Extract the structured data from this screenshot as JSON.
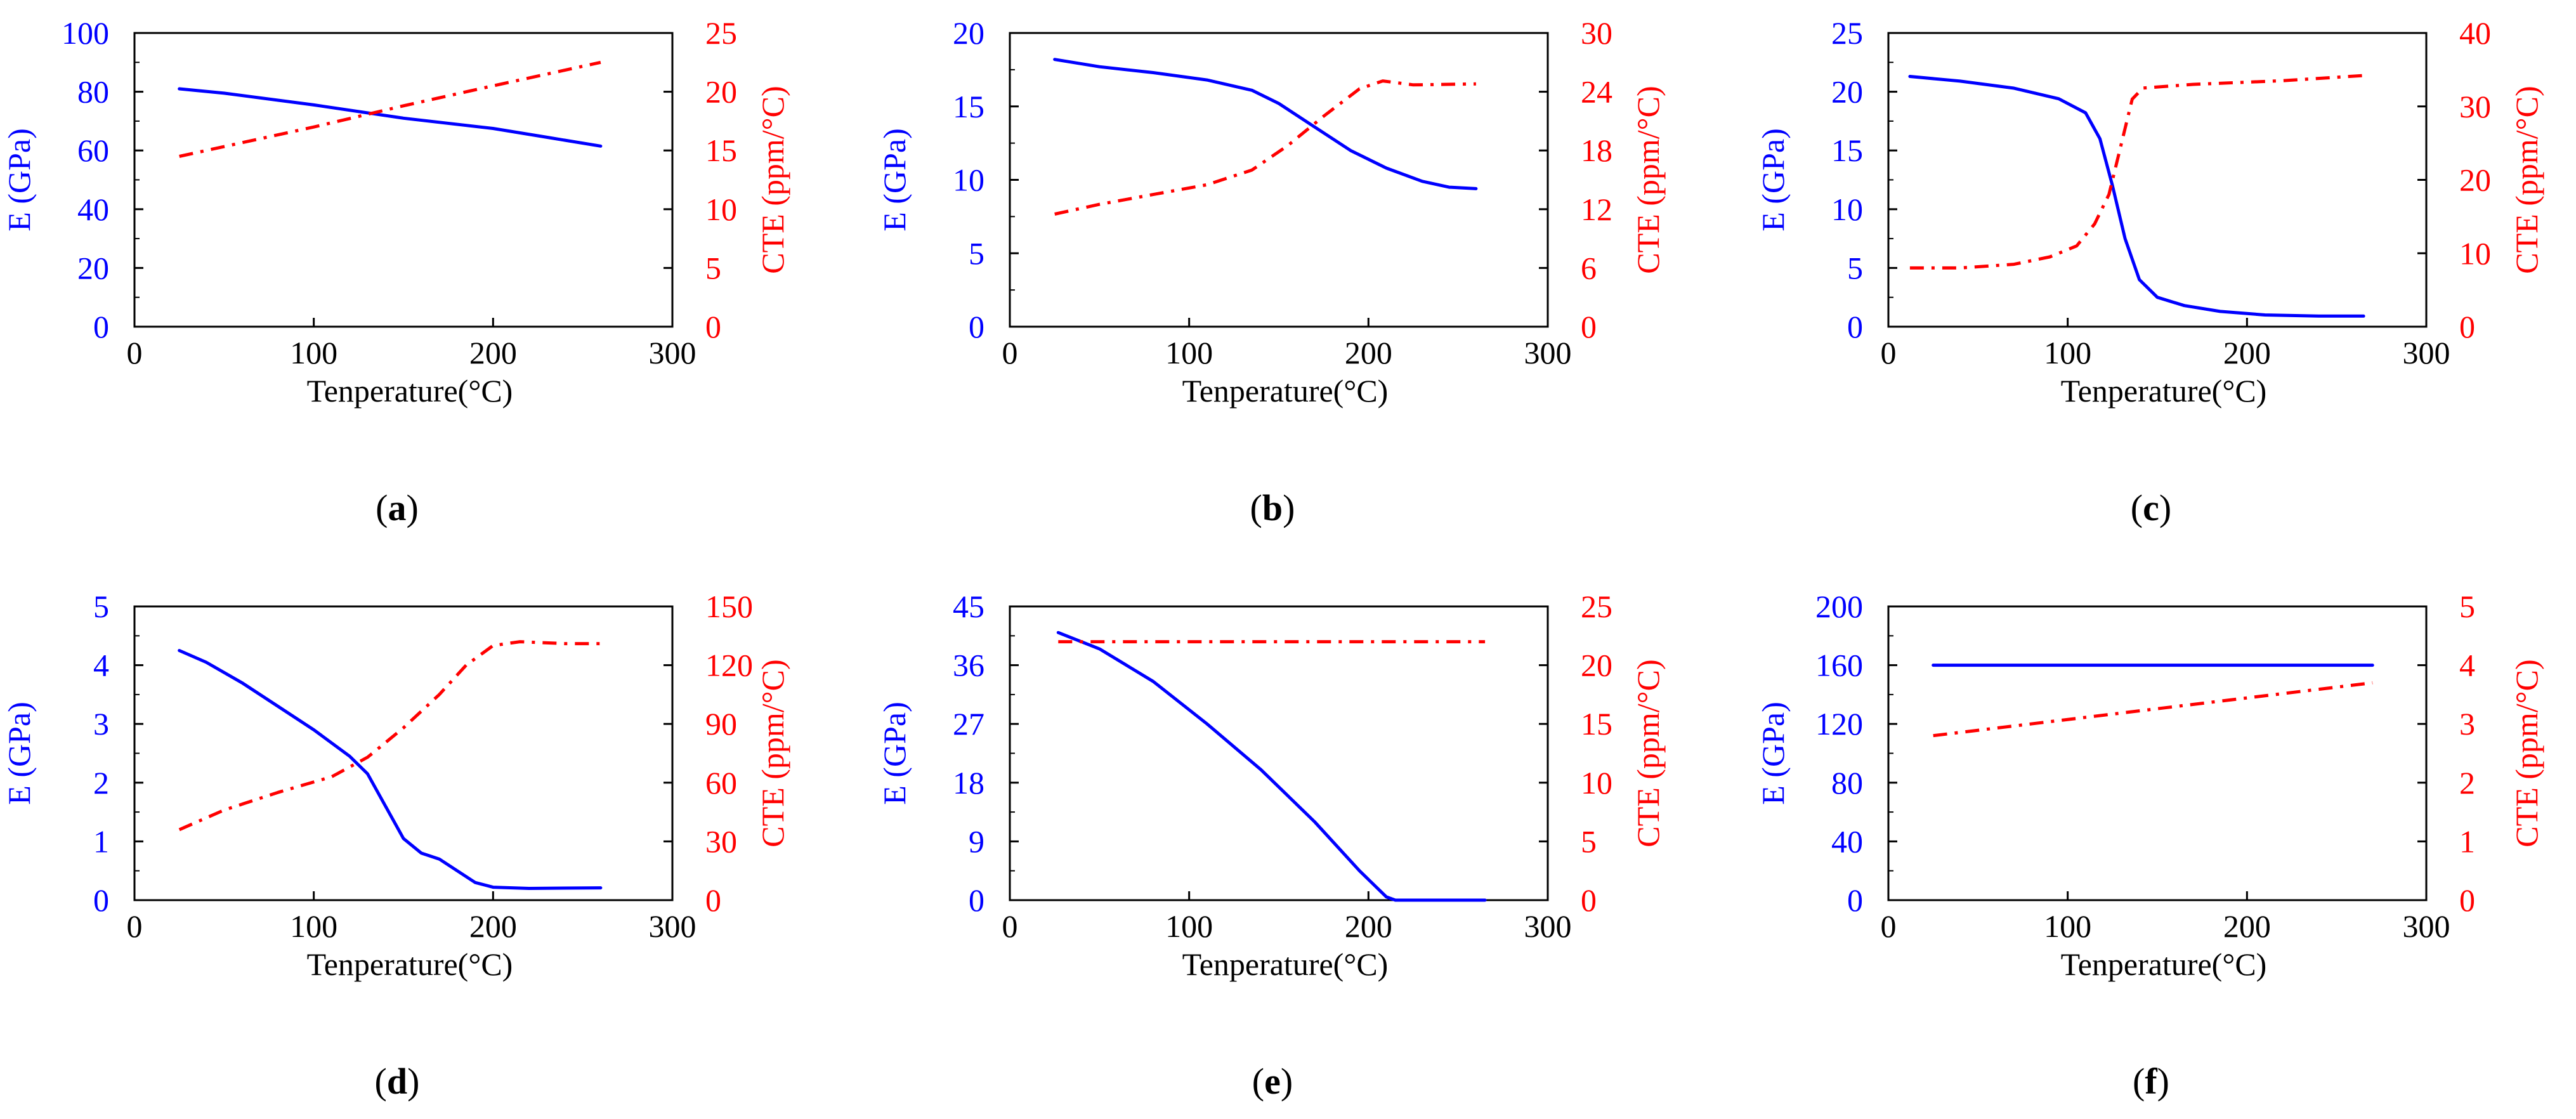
{
  "figure": {
    "background": "#ffffff",
    "e_color": "#0000ff",
    "cte_color": "#ff0000",
    "axis_color": "#000000"
  },
  "chart_data": [
    {
      "type": "line",
      "panel_label": "a",
      "xlabel": "Tenperature(°C)",
      "ylabel_left": "E (GPa)",
      "ylabel_right": "CTE (ppm/°C)",
      "xlim": [
        0,
        300
      ],
      "xticks": [
        0,
        100,
        200,
        300
      ],
      "ylim_left": [
        0,
        100
      ],
      "yticks_left": [
        0,
        20,
        40,
        60,
        80,
        100
      ],
      "ylim_right": [
        0,
        25
      ],
      "yticks_right": [
        0,
        5,
        10,
        15,
        20,
        25
      ],
      "series": [
        {
          "name": "E",
          "axis": "left",
          "style": "solid",
          "points": [
            [
              25,
              81
            ],
            [
              50,
              79.5
            ],
            [
              100,
              75.5
            ],
            [
              150,
              71
            ],
            [
              200,
              67.5
            ],
            [
              230,
              64.5
            ],
            [
              260,
              61.5
            ]
          ]
        },
        {
          "name": "CTE",
          "axis": "right",
          "style": "dashdot",
          "points": [
            [
              25,
              14.5
            ],
            [
              100,
              17
            ],
            [
              150,
              18.8
            ],
            [
              200,
              20.5
            ],
            [
              260,
              22.5
            ]
          ]
        }
      ]
    },
    {
      "type": "line",
      "panel_label": "b",
      "xlabel": "Tenperature(°C)",
      "ylabel_left": "E (GPa)",
      "ylabel_right": "CTE (ppm/°C)",
      "xlim": [
        0,
        300
      ],
      "xticks": [
        0,
        100,
        200,
        300
      ],
      "ylim_left": [
        0,
        20
      ],
      "yticks_left": [
        0,
        5,
        10,
        15,
        20
      ],
      "ylim_right": [
        0,
        30
      ],
      "yticks_right": [
        0,
        6,
        12,
        18,
        24,
        30
      ],
      "series": [
        {
          "name": "E",
          "axis": "left",
          "style": "solid",
          "points": [
            [
              25,
              18.2
            ],
            [
              50,
              17.7
            ],
            [
              80,
              17.3
            ],
            [
              110,
              16.8
            ],
            [
              135,
              16.1
            ],
            [
              150,
              15.2
            ],
            [
              170,
              13.6
            ],
            [
              190,
              12.0
            ],
            [
              210,
              10.8
            ],
            [
              230,
              9.9
            ],
            [
              245,
              9.5
            ],
            [
              260,
              9.4
            ]
          ]
        },
        {
          "name": "CTE",
          "axis": "right",
          "style": "dashdot",
          "points": [
            [
              25,
              11.5
            ],
            [
              50,
              12.5
            ],
            [
              80,
              13.5
            ],
            [
              110,
              14.5
            ],
            [
              135,
              16
            ],
            [
              155,
              18.5
            ],
            [
              175,
              21.5
            ],
            [
              195,
              24.3
            ],
            [
              208,
              25.1
            ],
            [
              225,
              24.7
            ],
            [
              260,
              24.8
            ]
          ]
        }
      ]
    },
    {
      "type": "line",
      "panel_label": "c",
      "xlabel": "Tenperature(°C)",
      "ylabel_left": "E (GPa)",
      "ylabel_right": "CTE (ppm/°C)",
      "xlim": [
        0,
        300
      ],
      "xticks": [
        0,
        100,
        200,
        300
      ],
      "ylim_left": [
        0,
        25
      ],
      "yticks_left": [
        0,
        5,
        10,
        15,
        20,
        25
      ],
      "ylim_right": [
        0,
        40
      ],
      "yticks_right": [
        0,
        10,
        20,
        30,
        40
      ],
      "series": [
        {
          "name": "E",
          "axis": "left",
          "style": "solid",
          "points": [
            [
              12,
              21.3
            ],
            [
              40,
              20.9
            ],
            [
              70,
              20.3
            ],
            [
              95,
              19.4
            ],
            [
              110,
              18.2
            ],
            [
              118,
              16.0
            ],
            [
              125,
              12.0
            ],
            [
              132,
              7.5
            ],
            [
              140,
              4.0
            ],
            [
              150,
              2.5
            ],
            [
              165,
              1.8
            ],
            [
              185,
              1.3
            ],
            [
              210,
              1.0
            ],
            [
              240,
              0.9
            ],
            [
              265,
              0.9
            ]
          ]
        },
        {
          "name": "CTE",
          "axis": "right",
          "style": "dashdot",
          "points": [
            [
              12,
              8
            ],
            [
              40,
              8
            ],
            [
              70,
              8.5
            ],
            [
              90,
              9.5
            ],
            [
              105,
              11
            ],
            [
              115,
              14
            ],
            [
              123,
              18
            ],
            [
              130,
              25
            ],
            [
              136,
              31
            ],
            [
              142,
              32.5
            ],
            [
              170,
              33
            ],
            [
              220,
              33.5
            ],
            [
              265,
              34.2
            ]
          ]
        }
      ]
    },
    {
      "type": "line",
      "panel_label": "d",
      "xlabel": "Tenperature(°C)",
      "ylabel_left": "E (GPa)",
      "ylabel_right": "CTE (ppm/°C)",
      "xlim": [
        0,
        300
      ],
      "xticks": [
        0,
        100,
        200,
        300
      ],
      "ylim_left": [
        0,
        5
      ],
      "yticks_left": [
        0,
        1,
        2,
        3,
        4,
        5
      ],
      "ylim_right": [
        0,
        150
      ],
      "yticks_right": [
        0,
        30,
        60,
        90,
        120,
        150
      ],
      "series": [
        {
          "name": "E",
          "axis": "left",
          "style": "solid",
          "points": [
            [
              25,
              4.25
            ],
            [
              40,
              4.05
            ],
            [
              60,
              3.7
            ],
            [
              80,
              3.3
            ],
            [
              100,
              2.9
            ],
            [
              120,
              2.45
            ],
            [
              130,
              2.15
            ],
            [
              140,
              1.6
            ],
            [
              150,
              1.05
            ],
            [
              160,
              0.8
            ],
            [
              170,
              0.7
            ],
            [
              180,
              0.5
            ],
            [
              190,
              0.3
            ],
            [
              200,
              0.22
            ],
            [
              220,
              0.2
            ],
            [
              260,
              0.21
            ]
          ]
        },
        {
          "name": "CTE",
          "axis": "right",
          "style": "dashdot",
          "points": [
            [
              25,
              36
            ],
            [
              50,
              46
            ],
            [
              80,
              55
            ],
            [
              110,
              63
            ],
            [
              130,
              73
            ],
            [
              150,
              88
            ],
            [
              170,
              105
            ],
            [
              185,
              120
            ],
            [
              200,
              130
            ],
            [
              215,
              132
            ],
            [
              240,
              131
            ],
            [
              260,
              131
            ]
          ]
        }
      ]
    },
    {
      "type": "line",
      "panel_label": "e",
      "xlabel": "Tenperature(°C)",
      "ylabel_left": "E (GPa)",
      "ylabel_right": "CTE (ppm/°C)",
      "xlim": [
        0,
        300
      ],
      "xticks": [
        0,
        100,
        200,
        300
      ],
      "ylim_left": [
        0,
        45
      ],
      "yticks_left": [
        0,
        9,
        18,
        27,
        36,
        45
      ],
      "ylim_right": [
        0,
        25
      ],
      "yticks_right": [
        0,
        5,
        10,
        15,
        20,
        25
      ],
      "series": [
        {
          "name": "E",
          "axis": "left",
          "style": "solid",
          "points": [
            [
              27,
              41
            ],
            [
              50,
              38.5
            ],
            [
              80,
              33.5
            ],
            [
              110,
              27
            ],
            [
              140,
              20
            ],
            [
              170,
              12
            ],
            [
              195,
              4.5
            ],
            [
              210,
              0.5
            ],
            [
              215,
              0
            ],
            [
              240,
              0
            ],
            [
              265,
              0
            ]
          ]
        },
        {
          "name": "CTE",
          "axis": "right",
          "style": "dashdot",
          "points": [
            [
              27,
              22
            ],
            [
              265,
              22
            ]
          ]
        }
      ]
    },
    {
      "type": "line",
      "panel_label": "f",
      "xlabel": "Tenperature(°C)",
      "ylabel_left": "E (GPa)",
      "ylabel_right": "CTE (ppm/°C)",
      "xlim": [
        0,
        300
      ],
      "xticks": [
        0,
        100,
        200,
        300
      ],
      "ylim_left": [
        0,
        200
      ],
      "yticks_left": [
        0,
        40,
        80,
        120,
        160,
        200
      ],
      "ylim_right": [
        0,
        5
      ],
      "yticks_right": [
        0,
        1,
        2,
        3,
        4,
        5
      ],
      "series": [
        {
          "name": "E",
          "axis": "left",
          "style": "solid",
          "points": [
            [
              25,
              160
            ],
            [
              270,
              160
            ]
          ]
        },
        {
          "name": "CTE",
          "axis": "right",
          "style": "dashdot",
          "points": [
            [
              25,
              2.8
            ],
            [
              270,
              3.7
            ]
          ]
        }
      ]
    }
  ]
}
